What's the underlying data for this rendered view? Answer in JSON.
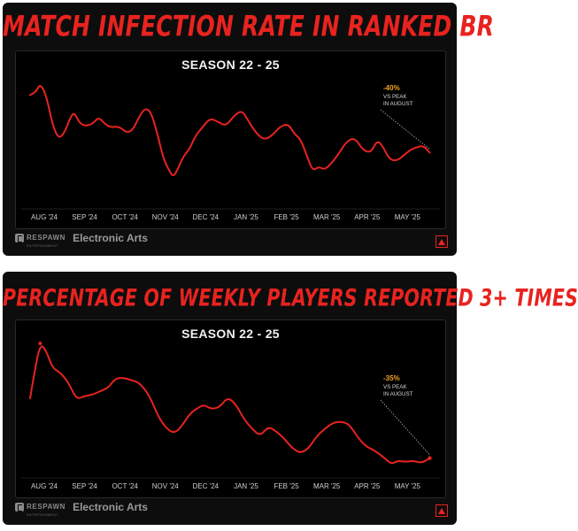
{
  "brand": {
    "studio": "RESPAWN",
    "studio_tagline": "ENTERTAINMENT",
    "publisher": "Electronic Arts",
    "accent_color": "#e8231f",
    "annotation_color": "#f5a623"
  },
  "chart_data": [
    {
      "type": "line",
      "title": "MATCH INFECTION RATE IN RANKED BR",
      "subtitle": "SEASON 22 - 25",
      "xlabel": "",
      "ylabel": "",
      "categories": [
        "AUG '24",
        "SEP '24",
        "OCT '24",
        "NOV '24",
        "DEC '24",
        "JAN '25",
        "FEB '25",
        "MAR '25",
        "APR '25",
        "MAY '25"
      ],
      "x_range": [
        0,
        10
      ],
      "y_range": [
        0,
        100
      ],
      "grid": false,
      "legend": "none",
      "series": [
        {
          "color": "#e8231f",
          "x": [
            0.0,
            0.15,
            0.25,
            0.4,
            0.55,
            0.7,
            0.85,
            1.0,
            1.1,
            1.2,
            1.35,
            1.55,
            1.7,
            1.85,
            2.0,
            2.2,
            2.4,
            2.55,
            2.7,
            2.85,
            3.0,
            3.15,
            3.3,
            3.45,
            3.55,
            3.65,
            3.8,
            3.95,
            4.1,
            4.25,
            4.45,
            4.65,
            4.85,
            5.05,
            5.25,
            5.4,
            5.6,
            5.8,
            6.0,
            6.2,
            6.4,
            6.55,
            6.7,
            6.85,
            7.0,
            7.15,
            7.3,
            7.5,
            7.7,
            7.85,
            8.05,
            8.25,
            8.45,
            8.6,
            8.75,
            8.9,
            9.1,
            9.3,
            9.45,
            9.6,
            9.75,
            9.9
          ],
          "y": [
            85,
            88,
            95,
            85,
            60,
            47,
            52,
            66,
            70,
            62,
            58,
            60,
            66,
            60,
            57,
            58,
            52,
            55,
            66,
            74,
            70,
            52,
            30,
            19,
            14,
            20,
            32,
            38,
            50,
            56,
            65,
            62,
            58,
            67,
            72,
            63,
            52,
            46,
            50,
            58,
            60,
            51,
            47,
            33,
            19,
            23,
            20,
            27,
            37,
            45,
            48,
            37,
            35,
            46,
            40,
            29,
            28,
            34,
            38,
            40,
            41,
            35
          ]
        }
      ],
      "annotation": {
        "value": "-40%",
        "lines": [
          "VS PEAK",
          "IN AUGUST"
        ]
      }
    },
    {
      "type": "line",
      "title": "PERCENTAGE OF WEEKLY PLAYERS REPORTED 3+ TIMES",
      "subtitle": "SEASON 22 - 25",
      "xlabel": "",
      "ylabel": "",
      "categories": [
        "AUG '24",
        "SEP '24",
        "OCT '24",
        "NOV '24",
        "DEC '24",
        "JAN '25",
        "FEB '25",
        "MAR '25",
        "APR '25",
        "MAY '25"
      ],
      "x_range": [
        0,
        10
      ],
      "y_range": [
        0,
        100
      ],
      "grid": false,
      "legend": "none",
      "series": [
        {
          "color": "#e8231f",
          "x": [
            0.0,
            0.1,
            0.25,
            0.4,
            0.55,
            0.75,
            0.95,
            1.15,
            1.35,
            1.55,
            1.75,
            1.95,
            2.1,
            2.3,
            2.5,
            2.7,
            2.95,
            3.2,
            3.45,
            3.6,
            3.75,
            3.95,
            4.1,
            4.3,
            4.5,
            4.7,
            4.9,
            5.1,
            5.3,
            5.5,
            5.7,
            5.9,
            6.1,
            6.3,
            6.5,
            6.7,
            6.9,
            7.1,
            7.3,
            7.5,
            7.7,
            7.9,
            8.1,
            8.3,
            8.55,
            8.75,
            8.95,
            9.1,
            9.3,
            9.5,
            9.7,
            9.9
          ],
          "y": [
            55,
            75,
            100,
            94,
            80,
            76,
            68,
            54,
            57,
            58,
            61,
            64,
            71,
            72,
            70,
            68,
            58,
            38,
            28,
            27,
            32,
            42,
            46,
            50,
            46,
            48,
            56,
            50,
            38,
            30,
            24,
            32,
            28,
            22,
            14,
            10,
            14,
            24,
            30,
            35,
            36,
            34,
            24,
            16,
            12,
            7,
            1,
            4,
            3,
            4,
            2,
            6
          ]
        }
      ],
      "annotation": {
        "value": "-35%",
        "lines": [
          "VS PEAK",
          "IN AUGUST"
        ]
      }
    }
  ]
}
